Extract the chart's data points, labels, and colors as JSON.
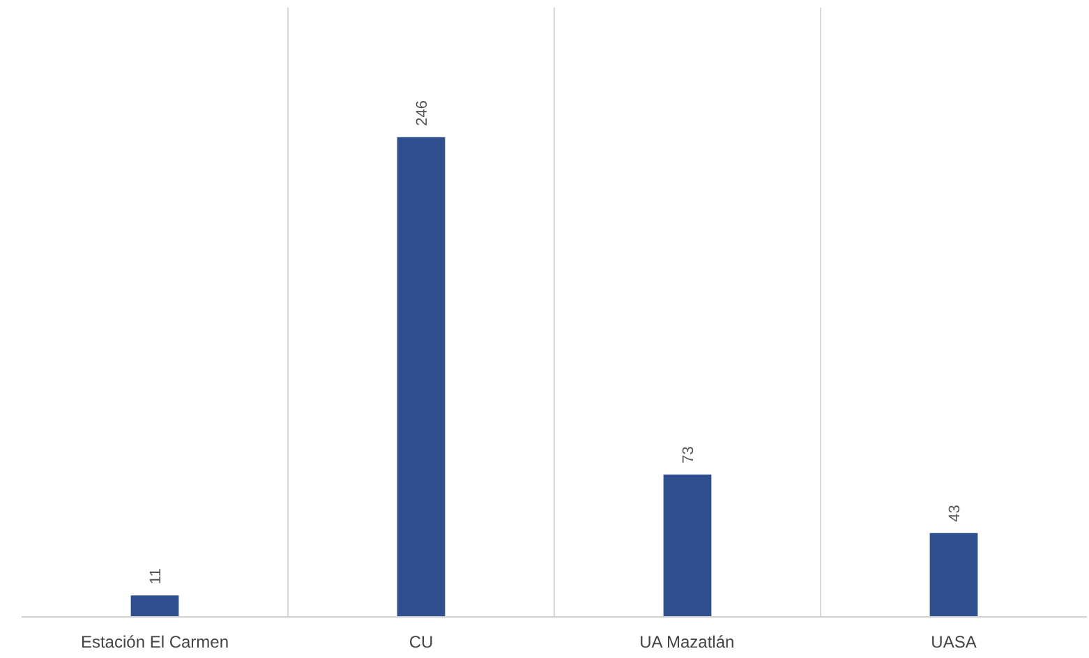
{
  "chart_data": {
    "type": "bar",
    "categories": [
      "Estación El Carmen",
      "CU",
      "UA Mazatlán",
      "UASA"
    ],
    "values": [
      11,
      246,
      73,
      43
    ],
    "color": "#2f4f8f",
    "data_labels": true,
    "grid": "x"
  }
}
